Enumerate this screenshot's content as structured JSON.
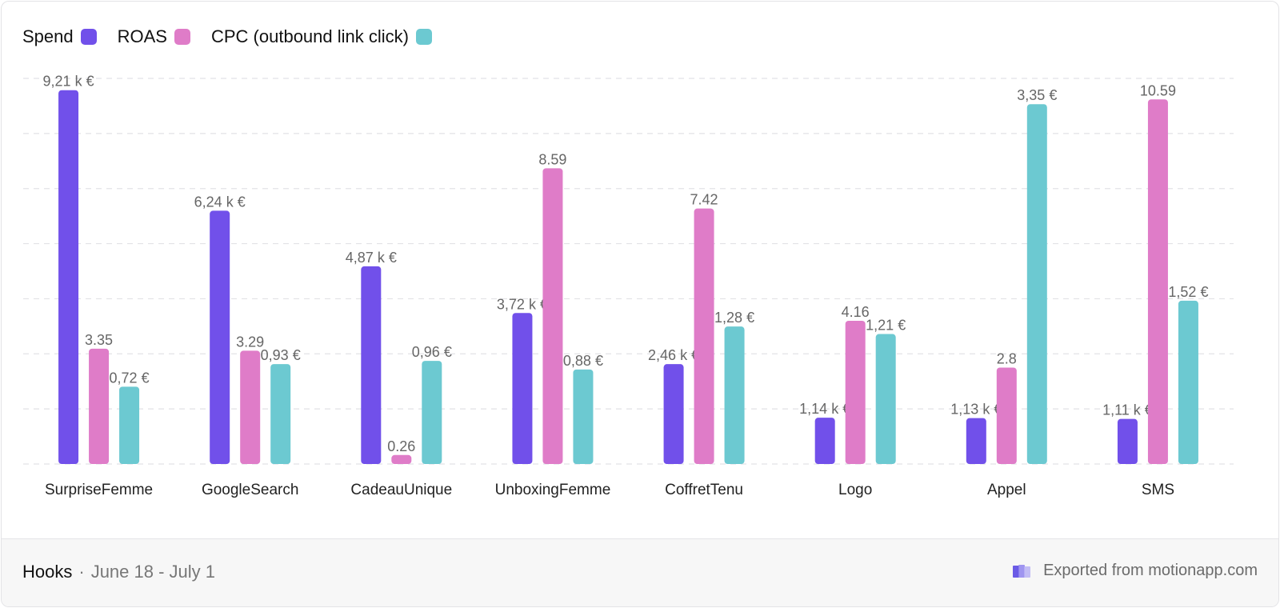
{
  "chart_data": {
    "type": "bar",
    "categories": [
      "SurpriseFemme",
      "GoogleSearch",
      "CadeauUnique",
      "UnboxingFemme",
      "CoffretTenu",
      "Logo",
      "Appel",
      "SMS"
    ],
    "series": [
      {
        "name": "Spend",
        "color": "#7150ea",
        "values": [
          9.21,
          6.24,
          4.87,
          3.72,
          2.46,
          1.14,
          1.13,
          1.11
        ],
        "labels": [
          "9,21 k €",
          "6,24 k €",
          "4,87 k €",
          "3,72 k €",
          "2,46 k €",
          "1,14 k €",
          "1,13 k €",
          "1,11 k €"
        ],
        "axis_max": 9.5
      },
      {
        "name": "ROAS",
        "color": "#df7cc8",
        "values": [
          3.35,
          3.29,
          0.26,
          8.59,
          7.42,
          4.16,
          2.8,
          10.59
        ],
        "labels": [
          "3.35",
          "3.29",
          "0.26",
          "8.59",
          "7.42",
          "4.16",
          "2.8",
          "10.59"
        ],
        "axis_max": 11.2
      },
      {
        "name": "CPC (outbound link click)",
        "color": "#6cc9d1",
        "values": [
          0.72,
          0.93,
          0.96,
          0.88,
          1.28,
          1.21,
          3.35,
          1.52
        ],
        "labels": [
          "0,72 €",
          "0,93 €",
          "0,96 €",
          "0,88 €",
          "1,28 €",
          "1,21 €",
          "3,35 €",
          "1,52 €"
        ],
        "axis_max": 3.59
      }
    ],
    "grid": "horizontal-dashed",
    "legend": "top-left"
  },
  "footer": {
    "title": "Hooks",
    "separator": "·",
    "dates": "June 18 - July 1",
    "export_text": "Exported from motionapp.com",
    "logo_icon": "motion-logo-icon"
  }
}
